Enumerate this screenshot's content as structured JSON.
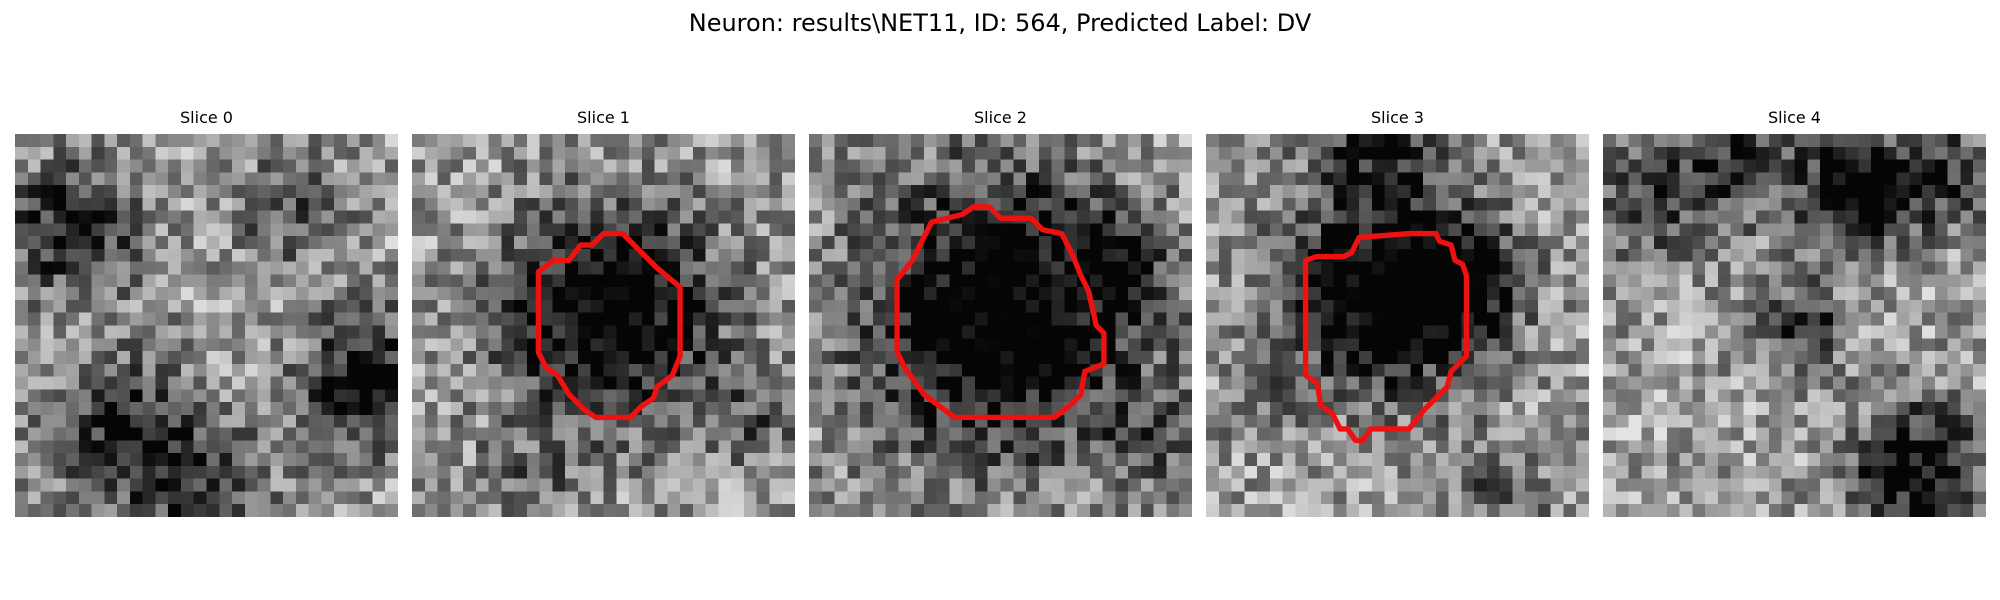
{
  "figure": {
    "title": "Neuron: results\\NET11, ID: 564, Predicted Label: DV",
    "contour_color": "#ee1111",
    "panels": [
      {
        "title": "Slice 0",
        "seed": 11,
        "dark_spots": [
          [
            0.15,
            0.25,
            0.12,
            0.55
          ],
          [
            0.28,
            0.78,
            0.14,
            0.5
          ],
          [
            0.92,
            0.65,
            0.12,
            0.65
          ],
          [
            0.72,
            0.2,
            0.1,
            0.35
          ],
          [
            0.5,
            0.92,
            0.12,
            0.35
          ]
        ],
        "has_contour": false
      },
      {
        "title": "Slice 1",
        "seed": 23,
        "dark_spots": [
          [
            0.52,
            0.47,
            0.2,
            0.75
          ],
          [
            0.9,
            0.75,
            0.08,
            0.25
          ],
          [
            0.3,
            0.92,
            0.1,
            0.2
          ]
        ],
        "has_contour": true,
        "contour": [
          [
            0.41,
            0.33
          ],
          [
            0.44,
            0.29
          ],
          [
            0.47,
            0.29
          ],
          [
            0.5,
            0.26
          ],
          [
            0.55,
            0.26
          ],
          [
            0.59,
            0.3
          ],
          [
            0.64,
            0.35
          ],
          [
            0.7,
            0.4
          ],
          [
            0.7,
            0.58
          ],
          [
            0.68,
            0.63
          ],
          [
            0.64,
            0.66
          ],
          [
            0.63,
            0.69
          ],
          [
            0.6,
            0.71
          ],
          [
            0.57,
            0.74
          ],
          [
            0.48,
            0.74
          ],
          [
            0.45,
            0.72
          ],
          [
            0.41,
            0.68
          ],
          [
            0.38,
            0.63
          ],
          [
            0.35,
            0.61
          ],
          [
            0.33,
            0.57
          ],
          [
            0.33,
            0.36
          ],
          [
            0.37,
            0.33
          ]
        ]
      },
      {
        "title": "Slice 2",
        "seed": 37,
        "dark_spots": [
          [
            0.5,
            0.47,
            0.26,
            0.8
          ],
          [
            0.82,
            0.35,
            0.08,
            0.35
          ],
          [
            0.92,
            0.8,
            0.1,
            0.25
          ]
        ],
        "has_contour": true,
        "contour": [
          [
            0.27,
            0.33
          ],
          [
            0.32,
            0.23
          ],
          [
            0.4,
            0.21
          ],
          [
            0.43,
            0.19
          ],
          [
            0.47,
            0.19
          ],
          [
            0.5,
            0.22
          ],
          [
            0.58,
            0.22
          ],
          [
            0.61,
            0.25
          ],
          [
            0.66,
            0.26
          ],
          [
            0.69,
            0.32
          ],
          [
            0.71,
            0.37
          ],
          [
            0.73,
            0.41
          ],
          [
            0.75,
            0.5
          ],
          [
            0.77,
            0.52
          ],
          [
            0.77,
            0.6
          ],
          [
            0.72,
            0.62
          ],
          [
            0.71,
            0.68
          ],
          [
            0.68,
            0.71
          ],
          [
            0.64,
            0.74
          ],
          [
            0.38,
            0.74
          ],
          [
            0.3,
            0.68
          ],
          [
            0.25,
            0.61
          ],
          [
            0.23,
            0.57
          ],
          [
            0.23,
            0.38
          ]
        ]
      },
      {
        "title": "Slice 3",
        "seed": 53,
        "dark_spots": [
          [
            0.47,
            0.42,
            0.18,
            0.8
          ],
          [
            0.68,
            0.38,
            0.1,
            0.55
          ],
          [
            0.45,
            0.05,
            0.12,
            0.4
          ],
          [
            0.75,
            0.95,
            0.1,
            0.25
          ],
          [
            0.15,
            0.7,
            0.08,
            0.2
          ]
        ],
        "has_contour": true,
        "contour": [
          [
            0.38,
            0.31
          ],
          [
            0.4,
            0.27
          ],
          [
            0.53,
            0.26
          ],
          [
            0.6,
            0.26
          ],
          [
            0.61,
            0.28
          ],
          [
            0.64,
            0.29
          ],
          [
            0.65,
            0.33
          ],
          [
            0.67,
            0.34
          ],
          [
            0.68,
            0.37
          ],
          [
            0.68,
            0.58
          ],
          [
            0.64,
            0.62
          ],
          [
            0.63,
            0.66
          ],
          [
            0.57,
            0.72
          ],
          [
            0.53,
            0.77
          ],
          [
            0.43,
            0.77
          ],
          [
            0.41,
            0.8
          ],
          [
            0.39,
            0.8
          ],
          [
            0.37,
            0.77
          ],
          [
            0.35,
            0.77
          ],
          [
            0.33,
            0.73
          ],
          [
            0.3,
            0.71
          ],
          [
            0.29,
            0.65
          ],
          [
            0.26,
            0.63
          ],
          [
            0.26,
            0.33
          ],
          [
            0.29,
            0.32
          ],
          [
            0.36,
            0.32
          ]
        ]
      },
      {
        "title": "Slice 4",
        "seed": 71,
        "dark_spots": [
          [
            0.67,
            0.15,
            0.1,
            0.8
          ],
          [
            0.35,
            0.05,
            0.12,
            0.45
          ],
          [
            0.9,
            0.1,
            0.1,
            0.4
          ],
          [
            0.52,
            0.5,
            0.08,
            0.45
          ],
          [
            0.82,
            0.88,
            0.12,
            0.65
          ],
          [
            0.1,
            0.2,
            0.12,
            0.3
          ]
        ],
        "has_contour": false
      }
    ]
  }
}
